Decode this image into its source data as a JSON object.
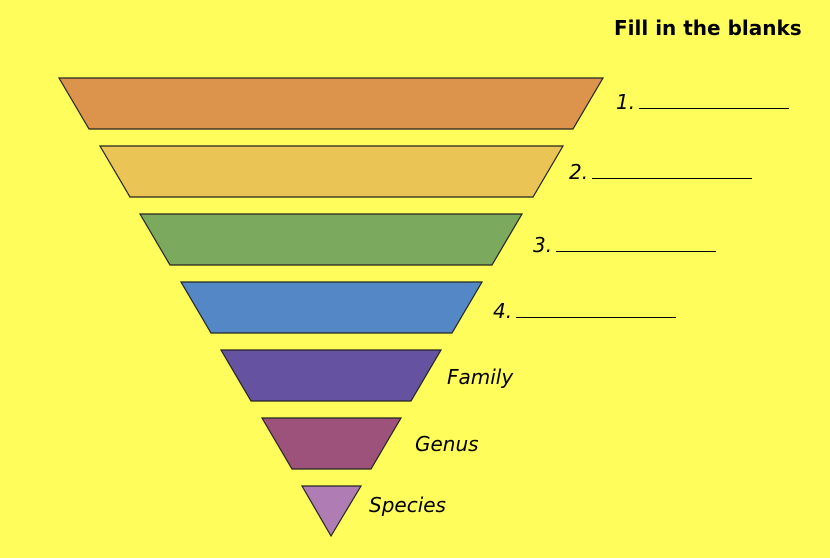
{
  "title": "Fill in the blanks",
  "levels": [
    {
      "label": "1.",
      "blank": true,
      "color": "#dc944c"
    },
    {
      "label": "2.",
      "blank": true,
      "color": "#eac455"
    },
    {
      "label": "3.",
      "blank": true,
      "color": "#7baa5e"
    },
    {
      "label": "4.",
      "blank": true,
      "color": "#5487c6"
    },
    {
      "label": "Family",
      "blank": false,
      "color": "#6552a1"
    },
    {
      "label": "Genus",
      "blank": false,
      "color": "#9d527b"
    },
    {
      "label": "Species",
      "blank": false,
      "color": "#b07cb4"
    }
  ]
}
